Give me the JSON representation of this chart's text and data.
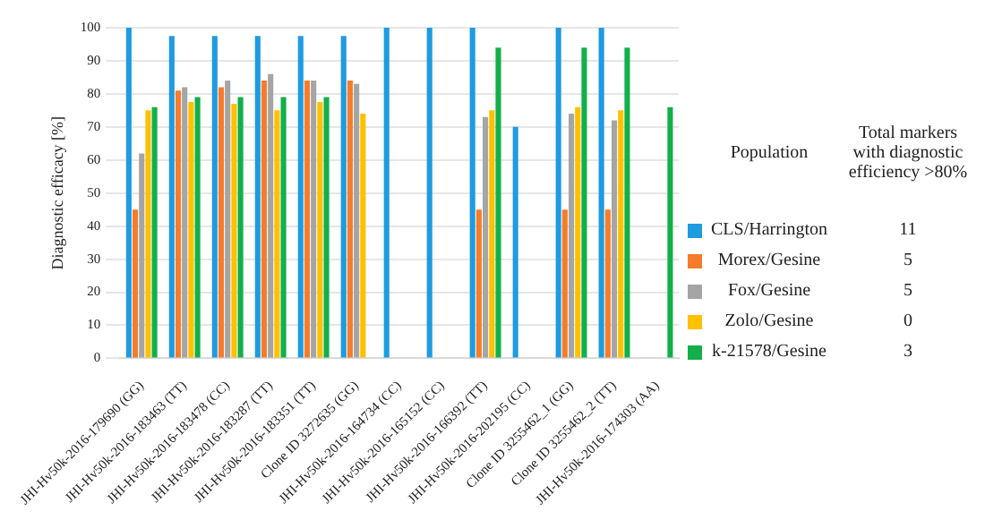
{
  "chart_data": {
    "type": "bar",
    "ylabel": "Diagnostic efficacy [%]",
    "legend_title": "Population",
    "legend": "right",
    "grid": "y",
    "categories": [
      "JHI-Hv50k-2016-179690 (GG)",
      "JHI-Hv50k-2016-183463 (TT)",
      "JHI-Hv50k-2016-183478 (CC)",
      "JHI-Hv50k-2016-183287 (TT)",
      "JHI-Hv50k-2016-183351 (TT)",
      "Clone ID 3272635 (GG)",
      "JHI-Hv50k-2016-164734 (CC)",
      "JHI-Hv50k-2016-165152 (CC)",
      "JHI-Hv50k-2016-166392 (TT)",
      "JHI-Hv50k-2016-202195 (CC)",
      "Clone ID 3255462_1 (GG)",
      "Clone ID 3255462_2 (TT)",
      "JHI-Hv50k-2016-174303 (AA)"
    ],
    "series": [
      {
        "name": "CLS/Harrington",
        "color": "#1f9be0",
        "values": [
          100,
          97.5,
          97.5,
          97.5,
          97.5,
          97.5,
          100,
          100,
          100,
          70,
          100,
          100,
          null
        ]
      },
      {
        "name": "Morex/Gesine",
        "color": "#f57c2a",
        "values": [
          45,
          81,
          82,
          84,
          84,
          84,
          null,
          null,
          45,
          null,
          45,
          45,
          null
        ]
      },
      {
        "name": "Fox/Gesine",
        "color": "#a5a5a5",
        "values": [
          62,
          82,
          84,
          86,
          84,
          83,
          null,
          null,
          73,
          null,
          74,
          72,
          null
        ]
      },
      {
        "name": "Zolo/Gesine",
        "color": "#ffc000",
        "values": [
          75,
          77.5,
          77,
          75,
          77.5,
          74,
          null,
          null,
          75,
          null,
          76,
          75,
          null
        ]
      },
      {
        "name": "k-21578/Gesine",
        "color": "#12b04a",
        "values": [
          76,
          79,
          79,
          79,
          79,
          null,
          null,
          null,
          94,
          null,
          94,
          94,
          76
        ]
      }
    ],
    "ylim": [
      0,
      100
    ],
    "yticks": [
      0,
      10,
      20,
      30,
      40,
      50,
      60,
      70,
      80,
      90,
      100
    ],
    "annotations": [
      "Total markers with diagnostic efficiency >80%",
      "11",
      "5",
      "5",
      "0",
      "3"
    ]
  }
}
